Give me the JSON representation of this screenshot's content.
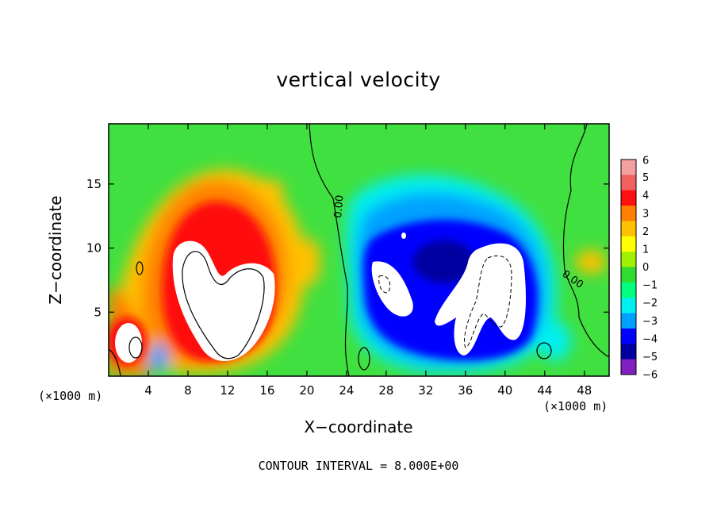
{
  "chart_data": {
    "type": "heatmap",
    "title": "vertical velocity",
    "xlabel": "X−coordinate",
    "ylabel": "Z−coordinate",
    "x_units": "(×1000 m)",
    "xlim": [
      0,
      50.5
    ],
    "ylim": [
      0,
      19.7
    ],
    "x_ticks": [
      4,
      8,
      12,
      16,
      20,
      24,
      28,
      32,
      36,
      40,
      44,
      48
    ],
    "y_ticks": [
      5,
      10,
      15
    ],
    "colorbar": {
      "ticks": [
        "6",
        "5",
        "4",
        "3",
        "2",
        "1",
        "0",
        "−1",
        "−2",
        "−3",
        "−4",
        "−5",
        "−6"
      ],
      "range": [
        -6,
        6
      ],
      "colors": [
        "#f4a0a0",
        "#f26060",
        "#ff1010",
        "#ff8000",
        "#ffc000",
        "#ffff00",
        "#a0f000",
        "#30dc30",
        "#00ff80",
        "#00f0f0",
        "#00a0ff",
        "#0000ff",
        "#0000a0",
        "#8020c0"
      ]
    },
    "contour_labels": [
      "0.00",
      "0.00"
    ],
    "features": [
      {
        "name": "updraft-core-left",
        "x": 10.5,
        "z": 7.5,
        "value": 6
      },
      {
        "name": "updraft-small-left",
        "x": 2.8,
        "z": 2.5,
        "value": 6
      },
      {
        "name": "downdraft-region",
        "x": 34,
        "z": 8,
        "value": -6
      },
      {
        "name": "updraft-in-downdraft",
        "x": 38,
        "z": 6.5,
        "value": 6
      }
    ]
  },
  "footer": "CONTOUR INTERVAL =  8.000E+00",
  "colors": {
    "background": "#40e040",
    "frame": "#000000"
  }
}
